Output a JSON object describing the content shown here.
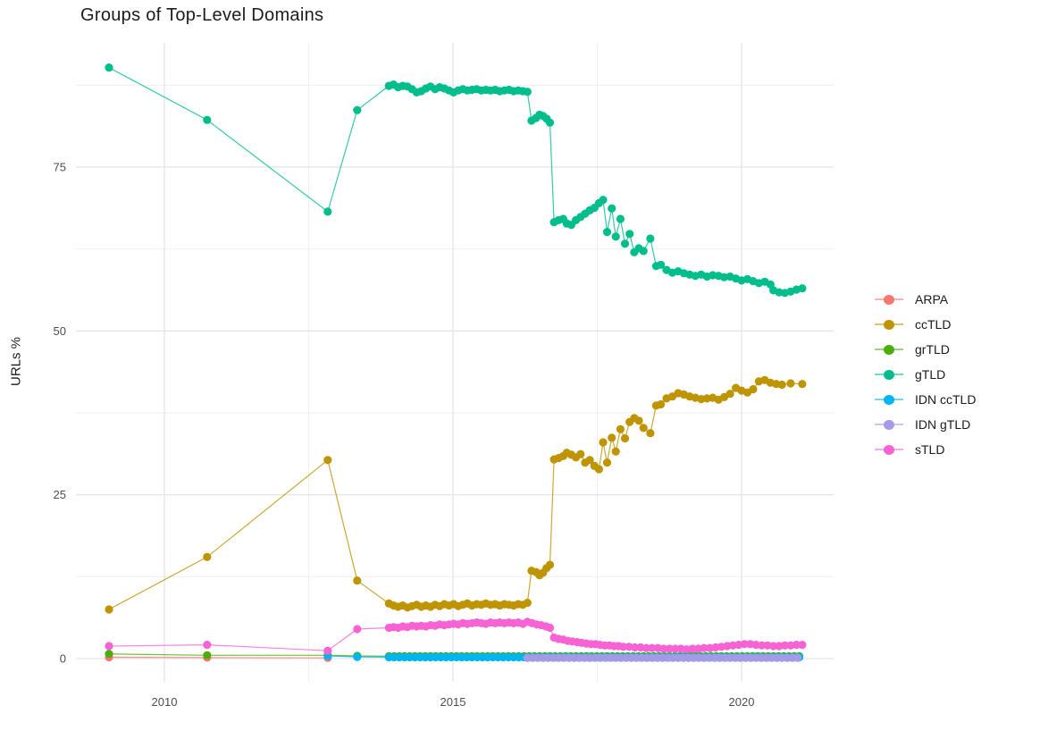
{
  "chart_data": {
    "type": "line",
    "title": "Groups of Top-Level Domains",
    "xlabel": "",
    "ylabel": "URLs %",
    "grid": true,
    "legend_position": "right",
    "axes": {
      "xlim": [
        2008.468,
        2021.594
      ],
      "ylim": [
        -3.55,
        93.96
      ],
      "x_major_ticks": [
        2010,
        2015,
        2020
      ],
      "x_minor_ticks": [
        2012.5,
        2017.5
      ],
      "y_major_ticks": [
        0,
        25,
        50,
        75
      ],
      "y_minor_ticks": [
        12.5,
        37.5,
        62.5,
        87.5
      ],
      "x_tick_labels": [
        "2010",
        "2015",
        "2020"
      ],
      "y_tick_labels": [
        "0",
        "25",
        "50",
        "75"
      ]
    },
    "colors": {
      "grid_major": "#e4e4e4",
      "grid_minor": "#efefef",
      "tick_label": "#4d4d4d",
      "title": "#1c1c1c",
      "axis_title": "#1a1a1a"
    },
    "series": [
      {
        "name": "ARPA",
        "color": "#F8766D",
        "points": [
          [
            2009.04,
            0.2
          ],
          [
            2010.74,
            0.15
          ],
          [
            2012.83,
            0.1
          ]
        ]
      },
      {
        "name": "ccTLD",
        "color": "#BE9400",
        "points": [
          [
            2009.04,
            7.5
          ],
          [
            2010.74,
            15.5
          ],
          [
            2012.83,
            30.3
          ],
          [
            2013.34,
            11.9
          ],
          [
            2013.89,
            8.4
          ],
          [
            2013.97,
            8.1
          ],
          [
            2014.05,
            7.9
          ],
          [
            2014.13,
            8.1
          ],
          [
            2014.21,
            7.8
          ],
          [
            2014.29,
            8.0
          ],
          [
            2014.37,
            8.2
          ],
          [
            2014.45,
            7.9
          ],
          [
            2014.53,
            8.1
          ],
          [
            2014.61,
            7.9
          ],
          [
            2014.69,
            8.2
          ],
          [
            2014.77,
            8.0
          ],
          [
            2014.85,
            8.3
          ],
          [
            2014.93,
            8.1
          ],
          [
            2015.01,
            8.3
          ],
          [
            2015.09,
            8.0
          ],
          [
            2015.17,
            8.2
          ],
          [
            2015.25,
            8.4
          ],
          [
            2015.33,
            8.1
          ],
          [
            2015.41,
            8.3
          ],
          [
            2015.49,
            8.2
          ],
          [
            2015.57,
            8.4
          ],
          [
            2015.65,
            8.2
          ],
          [
            2015.73,
            8.3
          ],
          [
            2015.81,
            8.1
          ],
          [
            2015.89,
            8.3
          ],
          [
            2015.97,
            8.2
          ],
          [
            2016.05,
            8.1
          ],
          [
            2016.13,
            8.3
          ],
          [
            2016.21,
            8.2
          ],
          [
            2016.29,
            8.5
          ],
          [
            2016.36,
            13.4
          ],
          [
            2016.44,
            13.2
          ],
          [
            2016.5,
            12.7
          ],
          [
            2016.56,
            13.1
          ],
          [
            2016.62,
            13.8
          ],
          [
            2016.68,
            14.3
          ],
          [
            2016.75,
            30.4
          ],
          [
            2016.83,
            30.6
          ],
          [
            2016.91,
            30.9
          ],
          [
            2016.97,
            31.4
          ],
          [
            2017.05,
            31.1
          ],
          [
            2017.13,
            30.7
          ],
          [
            2017.21,
            31.2
          ],
          [
            2017.29,
            29.9
          ],
          [
            2017.37,
            30.3
          ],
          [
            2017.45,
            29.4
          ],
          [
            2017.53,
            28.9
          ],
          [
            2017.6,
            33.0
          ],
          [
            2017.67,
            29.9
          ],
          [
            2017.75,
            33.7
          ],
          [
            2017.82,
            31.6
          ],
          [
            2017.9,
            35.0
          ],
          [
            2017.98,
            33.6
          ],
          [
            2018.06,
            36.1
          ],
          [
            2018.14,
            36.7
          ],
          [
            2018.22,
            36.3
          ],
          [
            2018.3,
            35.2
          ],
          [
            2018.42,
            34.4
          ],
          [
            2018.52,
            38.6
          ],
          [
            2018.6,
            38.8
          ],
          [
            2018.7,
            39.7
          ],
          [
            2018.8,
            40.0
          ],
          [
            2018.9,
            40.5
          ],
          [
            2019.0,
            40.3
          ],
          [
            2019.1,
            40.0
          ],
          [
            2019.2,
            39.8
          ],
          [
            2019.3,
            39.6
          ],
          [
            2019.4,
            39.7
          ],
          [
            2019.5,
            39.8
          ],
          [
            2019.6,
            39.5
          ],
          [
            2019.7,
            39.9
          ],
          [
            2019.8,
            40.4
          ],
          [
            2019.9,
            41.3
          ],
          [
            2020.0,
            40.9
          ],
          [
            2020.1,
            40.6
          ],
          [
            2020.2,
            41.1
          ],
          [
            2020.3,
            42.3
          ],
          [
            2020.4,
            42.5
          ],
          [
            2020.5,
            42.1
          ],
          [
            2020.6,
            41.9
          ],
          [
            2020.7,
            41.8
          ],
          [
            2020.85,
            42.0
          ],
          [
            2021.05,
            41.9
          ]
        ]
      },
      {
        "name": "grTLD",
        "color": "#4CAE0C",
        "points": [
          [
            2009.04,
            0.7
          ],
          [
            2010.74,
            0.5
          ],
          [
            2012.83,
            0.5
          ],
          [
            2013.34,
            0.4
          ]
        ],
        "runs": [
          {
            "x0": 2013.89,
            "x1": 2021.05,
            "step": 0.09,
            "y": 0.35
          }
        ]
      },
      {
        "name": "gTLD",
        "color": "#00BE8C",
        "points": [
          [
            2009.04,
            90.2
          ],
          [
            2010.74,
            82.2
          ],
          [
            2012.83,
            68.2
          ],
          [
            2013.34,
            83.7
          ],
          [
            2013.89,
            87.4
          ],
          [
            2013.97,
            87.6
          ],
          [
            2014.05,
            87.2
          ],
          [
            2014.13,
            87.4
          ],
          [
            2014.21,
            87.3
          ],
          [
            2014.29,
            86.9
          ],
          [
            2014.37,
            86.4
          ],
          [
            2014.45,
            86.6
          ],
          [
            2014.53,
            87.0
          ],
          [
            2014.61,
            87.3
          ],
          [
            2014.69,
            86.9
          ],
          [
            2014.77,
            87.2
          ],
          [
            2014.85,
            87.0
          ],
          [
            2014.93,
            86.7
          ],
          [
            2015.01,
            86.4
          ],
          [
            2015.09,
            86.7
          ],
          [
            2015.17,
            86.9
          ],
          [
            2015.25,
            86.7
          ],
          [
            2015.33,
            86.8
          ],
          [
            2015.41,
            86.9
          ],
          [
            2015.49,
            86.7
          ],
          [
            2015.57,
            86.8
          ],
          [
            2015.65,
            86.7
          ],
          [
            2015.73,
            86.8
          ],
          [
            2015.81,
            86.6
          ],
          [
            2015.89,
            86.7
          ],
          [
            2015.97,
            86.8
          ],
          [
            2016.05,
            86.6
          ],
          [
            2016.13,
            86.7
          ],
          [
            2016.21,
            86.6
          ],
          [
            2016.29,
            86.5
          ],
          [
            2016.36,
            82.1
          ],
          [
            2016.44,
            82.5
          ],
          [
            2016.5,
            83.0
          ],
          [
            2016.56,
            82.8
          ],
          [
            2016.62,
            82.4
          ],
          [
            2016.68,
            81.8
          ],
          [
            2016.75,
            66.6
          ],
          [
            2016.83,
            66.9
          ],
          [
            2016.91,
            67.1
          ],
          [
            2016.97,
            66.4
          ],
          [
            2017.05,
            66.2
          ],
          [
            2017.13,
            66.9
          ],
          [
            2017.21,
            67.4
          ],
          [
            2017.29,
            67.9
          ],
          [
            2017.37,
            68.4
          ],
          [
            2017.45,
            68.8
          ],
          [
            2017.53,
            69.5
          ],
          [
            2017.6,
            70.0
          ],
          [
            2017.67,
            65.1
          ],
          [
            2017.75,
            68.7
          ],
          [
            2017.82,
            64.4
          ],
          [
            2017.9,
            67.1
          ],
          [
            2017.98,
            63.3
          ],
          [
            2018.06,
            64.8
          ],
          [
            2018.14,
            62.0
          ],
          [
            2018.22,
            62.6
          ],
          [
            2018.3,
            62.2
          ],
          [
            2018.42,
            64.1
          ],
          [
            2018.52,
            59.9
          ],
          [
            2018.6,
            60.1
          ],
          [
            2018.7,
            59.3
          ],
          [
            2018.8,
            58.9
          ],
          [
            2018.9,
            59.1
          ],
          [
            2019.0,
            58.8
          ],
          [
            2019.1,
            58.6
          ],
          [
            2019.2,
            58.4
          ],
          [
            2019.3,
            58.6
          ],
          [
            2019.4,
            58.3
          ],
          [
            2019.5,
            58.5
          ],
          [
            2019.6,
            58.4
          ],
          [
            2019.7,
            58.2
          ],
          [
            2019.8,
            58.3
          ],
          [
            2019.9,
            58.0
          ],
          [
            2020.0,
            57.7
          ],
          [
            2020.1,
            57.9
          ],
          [
            2020.2,
            57.6
          ],
          [
            2020.3,
            57.3
          ],
          [
            2020.4,
            57.5
          ],
          [
            2020.5,
            57.1
          ],
          [
            2020.55,
            56.2
          ],
          [
            2020.65,
            55.9
          ],
          [
            2020.75,
            55.8
          ],
          [
            2020.85,
            56.0
          ],
          [
            2020.95,
            56.3
          ],
          [
            2021.05,
            56.5
          ]
        ]
      },
      {
        "name": "IDN ccTLD",
        "color": "#00B4EF",
        "points": [
          [
            2012.83,
            0.4
          ],
          [
            2013.34,
            0.25
          ]
        ],
        "runs": [
          {
            "x0": 2013.89,
            "x1": 2021.05,
            "step": 0.09,
            "y": 0.2
          }
        ]
      },
      {
        "name": "IDN gTLD",
        "color": "#A49BE8",
        "points": [],
        "runs": [
          {
            "x0": 2016.29,
            "x1": 2021.05,
            "step": 0.09,
            "y": 0.1
          }
        ]
      },
      {
        "name": "sTLD",
        "color": "#F763D4",
        "points": [
          [
            2009.04,
            1.9
          ],
          [
            2010.74,
            2.1
          ],
          [
            2012.83,
            1.2
          ],
          [
            2013.34,
            4.5
          ],
          [
            2013.89,
            4.7
          ],
          [
            2013.97,
            4.8
          ],
          [
            2014.05,
            4.7
          ],
          [
            2014.13,
            4.9
          ],
          [
            2014.21,
            4.8
          ],
          [
            2014.29,
            5.0
          ],
          [
            2014.37,
            4.9
          ],
          [
            2014.45,
            5.0
          ],
          [
            2014.53,
            4.9
          ],
          [
            2014.61,
            5.1
          ],
          [
            2014.69,
            5.0
          ],
          [
            2014.77,
            5.2
          ],
          [
            2014.85,
            5.1
          ],
          [
            2014.93,
            5.2
          ],
          [
            2015.01,
            5.3
          ],
          [
            2015.09,
            5.2
          ],
          [
            2015.17,
            5.4
          ],
          [
            2015.25,
            5.3
          ],
          [
            2015.33,
            5.4
          ],
          [
            2015.41,
            5.5
          ],
          [
            2015.49,
            5.4
          ],
          [
            2015.57,
            5.3
          ],
          [
            2015.65,
            5.5
          ],
          [
            2015.73,
            5.4
          ],
          [
            2015.81,
            5.5
          ],
          [
            2015.89,
            5.4
          ],
          [
            2015.97,
            5.5
          ],
          [
            2016.05,
            5.4
          ],
          [
            2016.13,
            5.5
          ],
          [
            2016.21,
            5.3
          ],
          [
            2016.29,
            5.6
          ],
          [
            2016.37,
            5.4
          ],
          [
            2016.45,
            5.2
          ],
          [
            2016.53,
            5.1
          ],
          [
            2016.61,
            4.9
          ],
          [
            2016.68,
            4.7
          ],
          [
            2016.75,
            3.2
          ],
          [
            2016.83,
            3.0
          ],
          [
            2016.91,
            2.9
          ],
          [
            2016.99,
            2.7
          ],
          [
            2017.07,
            2.6
          ],
          [
            2017.15,
            2.5
          ],
          [
            2017.23,
            2.4
          ],
          [
            2017.31,
            2.3
          ],
          [
            2017.39,
            2.2
          ],
          [
            2017.47,
            2.2
          ],
          [
            2017.55,
            2.1
          ],
          [
            2017.63,
            2.0
          ],
          [
            2017.71,
            2.0
          ],
          [
            2017.79,
            1.9
          ],
          [
            2017.87,
            1.9
          ],
          [
            2017.95,
            1.8
          ],
          [
            2018.05,
            1.8
          ],
          [
            2018.15,
            1.7
          ],
          [
            2018.25,
            1.7
          ],
          [
            2018.35,
            1.6
          ],
          [
            2018.45,
            1.6
          ],
          [
            2018.55,
            1.6
          ],
          [
            2018.65,
            1.5
          ],
          [
            2018.75,
            1.5
          ],
          [
            2018.85,
            1.5
          ],
          [
            2018.95,
            1.5
          ],
          [
            2019.05,
            1.4
          ],
          [
            2019.15,
            1.5
          ],
          [
            2019.25,
            1.5
          ],
          [
            2019.35,
            1.6
          ],
          [
            2019.45,
            1.6
          ],
          [
            2019.55,
            1.7
          ],
          [
            2019.65,
            1.8
          ],
          [
            2019.75,
            1.9
          ],
          [
            2019.85,
            2.0
          ],
          [
            2019.95,
            2.1
          ],
          [
            2020.05,
            2.2
          ],
          [
            2020.15,
            2.2
          ],
          [
            2020.25,
            2.1
          ],
          [
            2020.35,
            2.0
          ],
          [
            2020.45,
            2.0
          ],
          [
            2020.55,
            1.9
          ],
          [
            2020.65,
            1.9
          ],
          [
            2020.75,
            2.0
          ],
          [
            2020.85,
            2.0
          ],
          [
            2020.95,
            2.1
          ],
          [
            2021.05,
            2.1
          ]
        ]
      }
    ],
    "legend": [
      "ARPA",
      "ccTLD",
      "grTLD",
      "gTLD",
      "IDN ccTLD",
      "IDN gTLD",
      "sTLD"
    ]
  }
}
